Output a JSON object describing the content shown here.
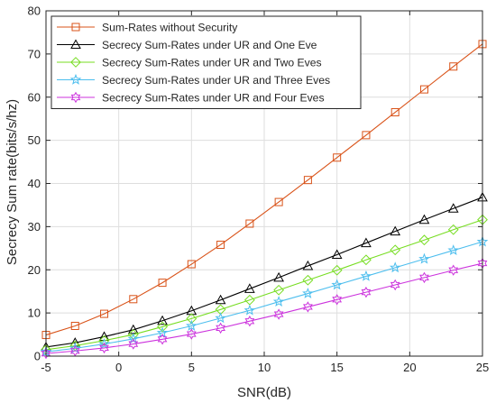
{
  "chart_data": {
    "type": "line",
    "title": "",
    "xlabel": "SNR(dB)",
    "ylabel": "Secrecy Sum rate(bits/s/hz)",
    "xlim": [
      -5,
      25
    ],
    "ylim": [
      0,
      80
    ],
    "xticks": [
      -5,
      0,
      5,
      10,
      15,
      20,
      25
    ],
    "yticks": [
      0,
      10,
      20,
      30,
      40,
      50,
      60,
      70,
      80
    ],
    "grid": true,
    "legend_position": "top-left",
    "x": [
      -5,
      -3,
      -1,
      1,
      3,
      5,
      7,
      9,
      11,
      13,
      15,
      17,
      19,
      21,
      23,
      25
    ],
    "series": [
      {
        "name": "Sum-Rates without Security",
        "color": "#D95319",
        "marker": "square",
        "values": [
          4.9,
          7.0,
          9.8,
          13.2,
          17.0,
          21.3,
          25.8,
          30.7,
          35.7,
          40.8,
          46.0,
          51.2,
          56.5,
          61.8,
          67.1,
          72.3
        ]
      },
      {
        "name": "Secrecy Sum-Rates under UR and One Eve",
        "color": "#000000",
        "marker": "triangle",
        "values": [
          2.1,
          3.1,
          4.5,
          6.1,
          8.2,
          10.5,
          13.0,
          15.6,
          18.2,
          20.9,
          23.5,
          26.2,
          28.9,
          31.6,
          34.2,
          36.8
        ]
      },
      {
        "name": "Secrecy Sum-Rates under UR and Two Eves",
        "color": "#77DD22",
        "marker": "diamond",
        "values": [
          1.5,
          2.4,
          3.6,
          5.0,
          6.8,
          8.7,
          10.8,
          13.0,
          15.3,
          17.6,
          19.9,
          22.3,
          24.6,
          26.9,
          29.3,
          31.6
        ]
      },
      {
        "name": "Secrecy Sum-Rates under UR and Three Eves",
        "color": "#4DBEEE",
        "marker": "star",
        "values": [
          1.0,
          1.8,
          2.8,
          4.0,
          5.4,
          7.0,
          8.8,
          10.6,
          12.6,
          14.5,
          16.5,
          18.5,
          20.5,
          22.5,
          24.5,
          26.5
        ]
      },
      {
        "name": "Secrecy Sum-Rates under UR and Four Eves",
        "color": "#CC33DD",
        "marker": "hexagram",
        "values": [
          0.6,
          1.2,
          1.9,
          2.8,
          3.9,
          5.1,
          6.5,
          8.1,
          9.7,
          11.4,
          13.1,
          14.8,
          16.5,
          18.2,
          19.9,
          21.5
        ]
      }
    ]
  }
}
